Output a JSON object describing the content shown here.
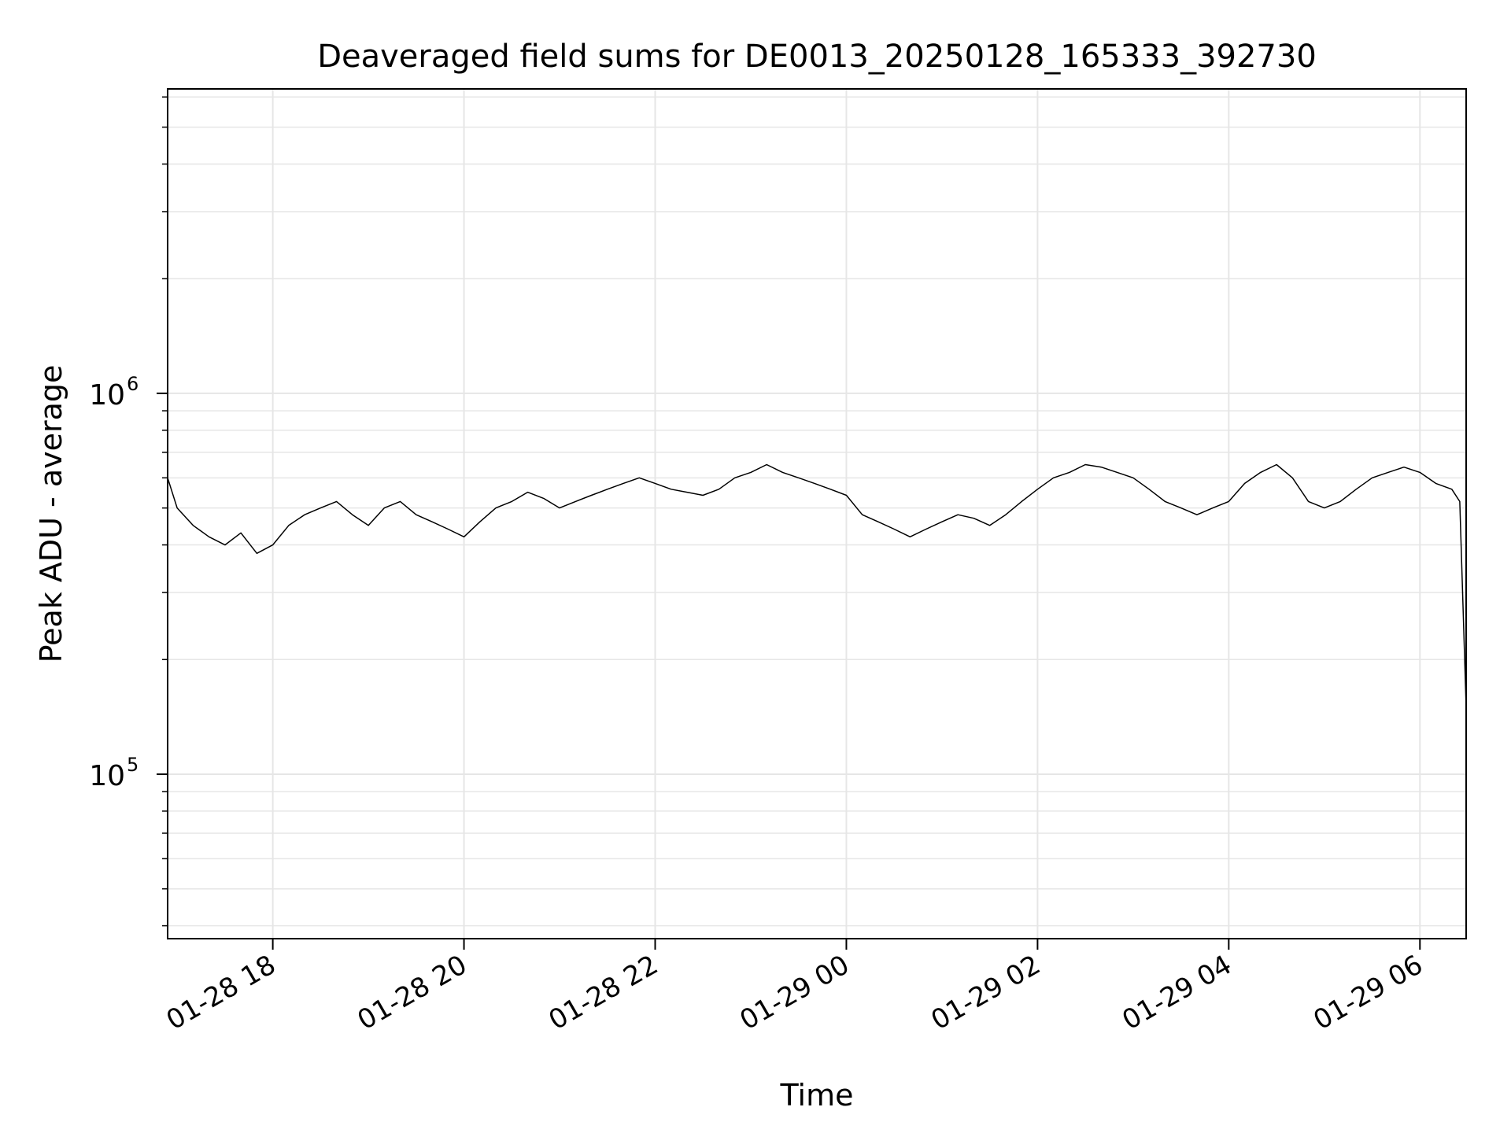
{
  "chart_data": {
    "type": "line",
    "title": "Deaveraged field sums for DE0013_20250128_165333_392730",
    "xlabel": "Time",
    "ylabel": "Peak ADU - average",
    "x_axis": {
      "kind": "datetime",
      "range": [
        "2025-01-28 16:54",
        "2025-01-29 06:29"
      ],
      "ticks": [
        "01-28 18",
        "01-28 20",
        "01-28 22",
        "01-29 00",
        "01-29 02",
        "01-29 04",
        "01-29 06"
      ],
      "tick_times": [
        "2025-01-28 18:00",
        "2025-01-28 20:00",
        "2025-01-28 22:00",
        "2025-01-29 00:00",
        "2025-01-29 02:00",
        "2025-01-29 04:00",
        "2025-01-29 06:00"
      ]
    },
    "y_axis": {
      "scale": "log",
      "range": [
        37000,
        6300000
      ],
      "major_ticks": [
        {
          "value": 100000,
          "base": "10",
          "exp": "5"
        },
        {
          "value": 1000000,
          "base": "10",
          "exp": "6"
        }
      ]
    },
    "grid": true,
    "legend": "none",
    "line_color": "#000000",
    "series": [
      {
        "x": [
          "2025-01-28 16:54",
          "2025-01-28 17:00",
          "2025-01-28 17:10",
          "2025-01-28 17:20",
          "2025-01-28 17:30",
          "2025-01-28 17:40",
          "2025-01-28 17:50",
          "2025-01-28 18:00",
          "2025-01-28 18:10",
          "2025-01-28 18:20",
          "2025-01-28 18:30",
          "2025-01-28 18:40",
          "2025-01-28 18:50",
          "2025-01-28 19:00",
          "2025-01-28 19:10",
          "2025-01-28 19:20",
          "2025-01-28 19:30",
          "2025-01-28 19:40",
          "2025-01-28 19:50",
          "2025-01-28 20:00",
          "2025-01-28 20:10",
          "2025-01-28 20:20",
          "2025-01-28 20:30",
          "2025-01-28 20:40",
          "2025-01-28 20:50",
          "2025-01-28 21:00",
          "2025-01-28 21:10",
          "2025-01-28 21:20",
          "2025-01-28 21:30",
          "2025-01-28 21:40",
          "2025-01-28 21:50",
          "2025-01-28 22:00",
          "2025-01-28 22:10",
          "2025-01-28 22:20",
          "2025-01-28 22:30",
          "2025-01-28 22:40",
          "2025-01-28 22:50",
          "2025-01-28 23:00",
          "2025-01-28 23:10",
          "2025-01-28 23:20",
          "2025-01-28 23:30",
          "2025-01-28 23:40",
          "2025-01-28 23:50",
          "2025-01-29 00:00",
          "2025-01-29 00:10",
          "2025-01-29 00:20",
          "2025-01-29 00:30",
          "2025-01-29 00:40",
          "2025-01-29 00:50",
          "2025-01-29 01:00",
          "2025-01-29 01:10",
          "2025-01-29 01:20",
          "2025-01-29 01:30",
          "2025-01-29 01:40",
          "2025-01-29 01:50",
          "2025-01-29 02:00",
          "2025-01-29 02:10",
          "2025-01-29 02:20",
          "2025-01-29 02:30",
          "2025-01-29 02:40",
          "2025-01-29 02:50",
          "2025-01-29 03:00",
          "2025-01-29 03:10",
          "2025-01-29 03:20",
          "2025-01-29 03:30",
          "2025-01-29 03:40",
          "2025-01-29 03:50",
          "2025-01-29 04:00",
          "2025-01-29 04:10",
          "2025-01-29 04:20",
          "2025-01-29 04:30",
          "2025-01-29 04:40",
          "2025-01-29 04:50",
          "2025-01-29 05:00",
          "2025-01-29 05:10",
          "2025-01-29 05:20",
          "2025-01-29 05:30",
          "2025-01-29 05:40",
          "2025-01-29 05:50",
          "2025-01-29 06:00",
          "2025-01-29 06:10",
          "2025-01-29 06:20",
          "2025-01-29 06:25",
          "2025-01-29 06:29"
        ],
        "y": [
          600000,
          500000,
          450000,
          420000,
          400000,
          430000,
          380000,
          400000,
          450000,
          480000,
          500000,
          520000,
          480000,
          450000,
          500000,
          520000,
          480000,
          460000,
          440000,
          420000,
          460000,
          500000,
          520000,
          550000,
          530000,
          500000,
          520000,
          540000,
          560000,
          580000,
          600000,
          580000,
          560000,
          550000,
          540000,
          560000,
          600000,
          620000,
          650000,
          620000,
          600000,
          580000,
          560000,
          540000,
          480000,
          460000,
          440000,
          420000,
          440000,
          460000,
          480000,
          470000,
          450000,
          480000,
          520000,
          560000,
          600000,
          620000,
          650000,
          640000,
          620000,
          600000,
          560000,
          520000,
          500000,
          480000,
          500000,
          520000,
          580000,
          620000,
          650000,
          600000,
          520000,
          500000,
          520000,
          560000,
          600000,
          620000,
          640000,
          620000,
          580000,
          560000,
          520000,
          150000
        ]
      }
    ]
  }
}
